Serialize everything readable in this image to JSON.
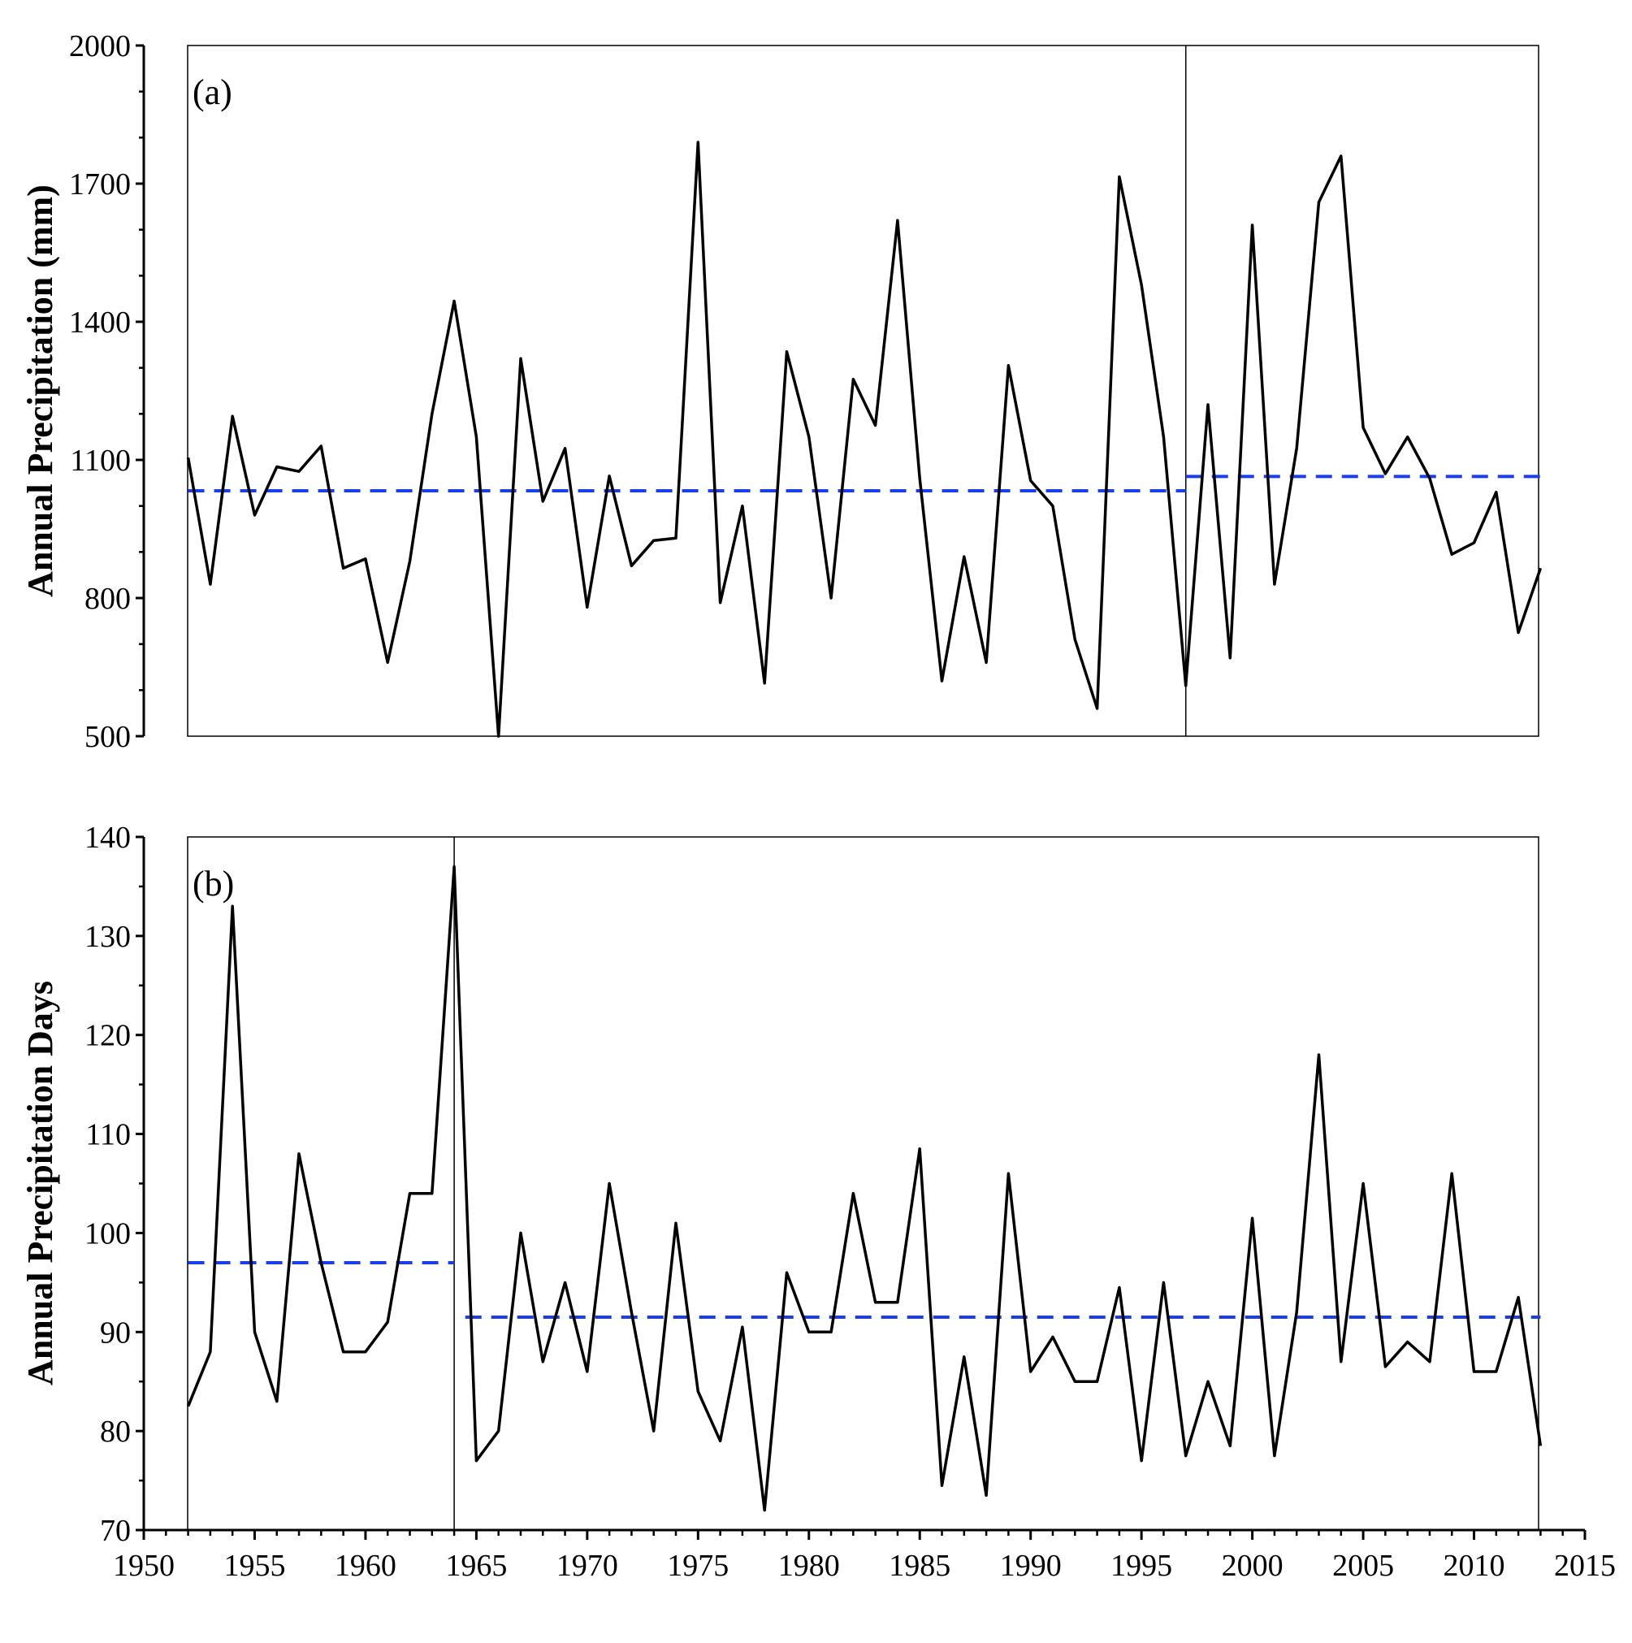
{
  "chart_data": [
    {
      "type": "line",
      "panel_label": "(a)",
      "ylabel": "Annual Precipitation (mm)",
      "xlabel": "",
      "xlim": [
        1952,
        2013
      ],
      "ylim": [
        500,
        2000
      ],
      "yticks": [
        500,
        800,
        1100,
        1400,
        1700,
        2000
      ],
      "yminor": 100,
      "change_point": 1997,
      "series": [
        {
          "name": "Annual Precipitation",
          "x": [
            1952,
            1953,
            1954,
            1955,
            1956,
            1957,
            1958,
            1959,
            1960,
            1961,
            1962,
            1963,
            1964,
            1965,
            1966,
            1967,
            1968,
            1969,
            1970,
            1971,
            1972,
            1973,
            1974,
            1975,
            1976,
            1977,
            1978,
            1979,
            1980,
            1981,
            1982,
            1983,
            1984,
            1985,
            1986,
            1987,
            1988,
            1989,
            1990,
            1991,
            1992,
            1993,
            1994,
            1995,
            1996,
            1997,
            1998,
            1999,
            2000,
            2001,
            2002,
            2003,
            2004,
            2005,
            2006,
            2007,
            2008,
            2009,
            2010,
            2011,
            2012,
            2013
          ],
          "values": [
            1105,
            830,
            1195,
            980,
            1085,
            1075,
            1130,
            865,
            885,
            660,
            880,
            1200,
            1445,
            1150,
            500,
            1320,
            1010,
            1125,
            780,
            1065,
            870,
            925,
            930,
            1790,
            790,
            1000,
            615,
            1335,
            1150,
            800,
            1275,
            1175,
            1620,
            1060,
            620,
            890,
            660,
            1305,
            1055,
            1000,
            710,
            560,
            1715,
            1480,
            1150,
            610,
            1220,
            670,
            1610,
            830,
            1125,
            1660,
            1760,
            1170,
            1070,
            1150,
            1060,
            895,
            920,
            1030,
            725,
            865
          ]
        }
      ],
      "mean_lines": [
        {
          "name": "mean 1952-1997",
          "x_start": 1952,
          "x_end": 1997,
          "value": 1033
        },
        {
          "name": "mean 1997-2013",
          "x_start": 1997,
          "x_end": 2013,
          "value": 1064
        }
      ]
    },
    {
      "type": "line",
      "panel_label": "(b)",
      "ylabel": "Annual Precipitation Days",
      "xlabel": "",
      "xlim": [
        1950,
        2015
      ],
      "ylim": [
        70,
        140
      ],
      "yticks": [
        70,
        80,
        90,
        100,
        110,
        120,
        130,
        140
      ],
      "xticks": [
        1950,
        1955,
        1960,
        1965,
        1970,
        1975,
        1980,
        1985,
        1990,
        1995,
        2000,
        2005,
        2010,
        2015
      ],
      "yminor": 5,
      "xminor": 1,
      "plot_x_start": 1952,
      "plot_x_end": 2013,
      "change_point": 1964,
      "series": [
        {
          "name": "Annual Precipitation Days",
          "x": [
            1952,
            1953,
            1954,
            1955,
            1956,
            1957,
            1958,
            1959,
            1960,
            1961,
            1962,
            1963,
            1964,
            1965,
            1966,
            1967,
            1968,
            1969,
            1970,
            1971,
            1972,
            1973,
            1974,
            1975,
            1976,
            1977,
            1978,
            1979,
            1980,
            1981,
            1982,
            1983,
            1984,
            1985,
            1986,
            1987,
            1988,
            1989,
            1990,
            1991,
            1992,
            1993,
            1994,
            1995,
            1996,
            1997,
            1998,
            1999,
            2000,
            2001,
            2002,
            2003,
            2004,
            2005,
            2006,
            2007,
            2008,
            2009,
            2010,
            2011,
            2012,
            2013
          ],
          "values": [
            82.5,
            88,
            133,
            90,
            83,
            108,
            97,
            88,
            88,
            91,
            104,
            104,
            137,
            77,
            80,
            100,
            87,
            95,
            86,
            105,
            92,
            80,
            101,
            84,
            79,
            90.5,
            72,
            96,
            90,
            90,
            104,
            93,
            93,
            108.5,
            74.5,
            87.5,
            73.5,
            106,
            86,
            89.5,
            85,
            85,
            94.5,
            77,
            95,
            77.5,
            85,
            78.5,
            101.5,
            77.5,
            92,
            118,
            87,
            105,
            86.5,
            89,
            87,
            106,
            86,
            86,
            93.5,
            78.5
          ]
        }
      ],
      "mean_lines": [
        {
          "name": "mean 1952-1964",
          "x_start": 1952,
          "x_end": 1964,
          "value": 97
        },
        {
          "name": "mean 1964-2013",
          "x_start": 1964.5,
          "x_end": 2013,
          "value": 91.5
        }
      ]
    }
  ]
}
